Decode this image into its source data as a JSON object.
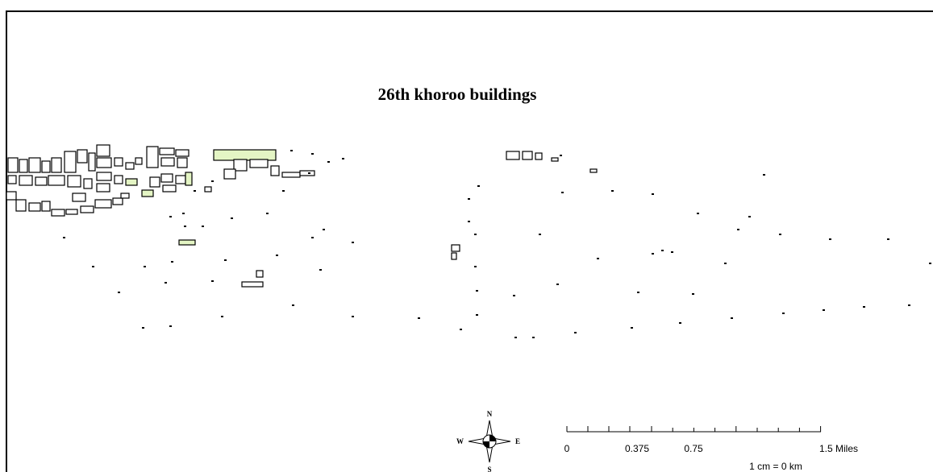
{
  "title": "26th khoroo buildings",
  "north_arrow": {
    "n": "N",
    "s": "S",
    "e": "E",
    "w": "W"
  },
  "scale_bar": {
    "labels": [
      "0",
      "0.375",
      "0.75",
      "1.5 Miles"
    ],
    "note": "1 cm = 0 km"
  }
}
